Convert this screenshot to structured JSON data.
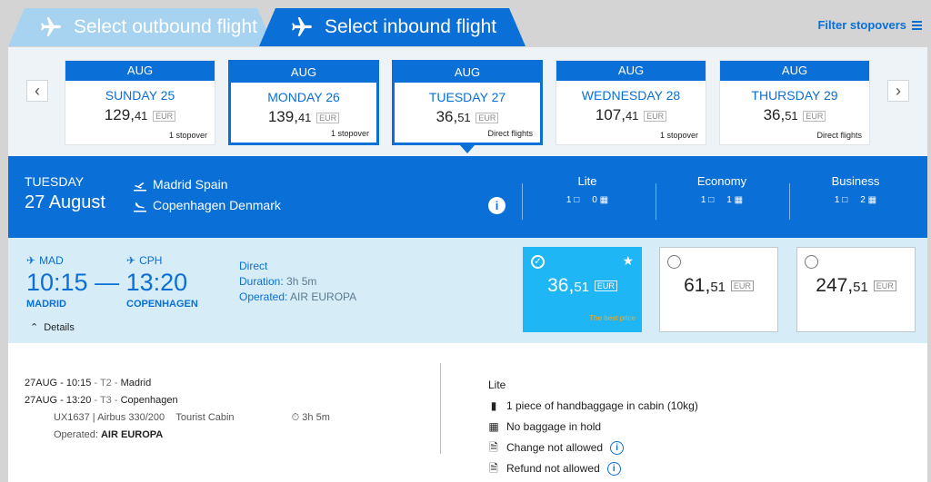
{
  "tabs": [
    {
      "label": "Select outbound flight"
    },
    {
      "label": "Select inbound flight"
    }
  ],
  "filter_label": "Filter stopovers",
  "dates": [
    {
      "month": "AUG",
      "day": "SUNDAY 25",
      "price_int": "129,",
      "price_cents": "41",
      "currency": "EUR",
      "stops": "1 stopover"
    },
    {
      "month": "AUG",
      "day": "MONDAY 26",
      "price_int": "139,",
      "price_cents": "41",
      "currency": "EUR",
      "stops": "1 stopover"
    },
    {
      "month": "AUG",
      "day": "TUESDAY 27",
      "price_int": "36,",
      "price_cents": "51",
      "currency": "EUR",
      "stops": "Direct flights"
    },
    {
      "month": "AUG",
      "day": "WEDNESDAY 28",
      "price_int": "107,",
      "price_cents": "41",
      "currency": "EUR",
      "stops": "1 stopover"
    },
    {
      "month": "AUG",
      "day": "THURSDAY 29",
      "price_int": "36,",
      "price_cents": "51",
      "currency": "EUR",
      "stops": "Direct flights"
    }
  ],
  "header": {
    "weekday": "TUESDAY",
    "date": "27 August",
    "from": "Madrid Spain",
    "to": "Copenhagen Denmark",
    "classes": [
      {
        "name": "Lite",
        "hand": "1",
        "hold": "0"
      },
      {
        "name": "Economy",
        "hand": "1",
        "hold": "1"
      },
      {
        "name": "Business",
        "hand": "1",
        "hold": "2"
      }
    ]
  },
  "flight": {
    "dep_code": "MAD",
    "arr_code": "CPH",
    "times": "10:15 — 13:20",
    "dep_city": "MADRID",
    "arr_city": "COPENHAGEN",
    "details_label": "Details",
    "type": "Direct",
    "duration_label": "Duration:",
    "duration": "3h 5m",
    "operated_label": "Operated:",
    "operator": "AIR EUROPA",
    "fares": [
      {
        "int": "36,",
        "cents": "51",
        "currency": "EUR",
        "note": "The best price"
      },
      {
        "int": "61,",
        "cents": "51",
        "currency": "EUR",
        "note": ""
      },
      {
        "int": "247,",
        "cents": "51",
        "currency": "EUR",
        "note": ""
      }
    ]
  },
  "panel": {
    "leg1": "27AUG - 10:15",
    "leg1_term": " - T2 - ",
    "leg1_city": "Madrid",
    "leg2": "27AUG - 13:20",
    "leg2_term": " - T3 - ",
    "leg2_city": "Copenhagen",
    "flight_no": "UX1637 | Airbus 330/200",
    "cabin": "Tourist Cabin",
    "duration": "3h 5m",
    "operated_label": "Operated:",
    "operator": "AIR EUROPA",
    "fare_name": "Lite",
    "items": [
      {
        "text": "1 piece of handbaggage in cabin (10kg)"
      },
      {
        "text": "No baggage in hold"
      },
      {
        "text": "Change not allowed"
      },
      {
        "text": "Refund not allowed"
      }
    ]
  }
}
